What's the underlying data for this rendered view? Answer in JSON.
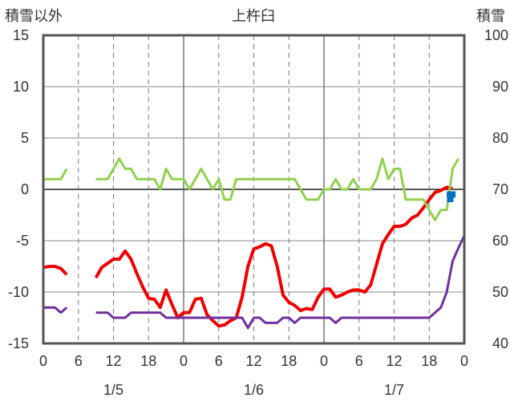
{
  "chart_data": {
    "type": "line",
    "title": "上杵臼",
    "y_left_label": "積雪以外",
    "y_right_label": "積雪",
    "y_left_range": [
      -15,
      15
    ],
    "y_left_ticks": [
      "15",
      "10",
      "5",
      "0",
      "-5",
      "-10",
      "-15"
    ],
    "y_right_range": [
      40,
      100
    ],
    "y_right_ticks": [
      "100",
      "90",
      "80",
      "70",
      "60",
      "50",
      "40"
    ],
    "x_range": [
      0,
      72
    ],
    "x_ticks": [
      "0",
      "6",
      "12",
      "18",
      "0",
      "6",
      "12",
      "18",
      "0",
      "6",
      "12",
      "18",
      "0"
    ],
    "date_labels": [
      {
        "label": "1/5",
        "x": 12
      },
      {
        "label": "1/6",
        "x": 36
      },
      {
        "label": "1/7",
        "x": 60
      }
    ],
    "colors": {
      "red": "#ee0000",
      "green": "#92d050",
      "purple": "#7030a0",
      "blue": "#0070c0"
    },
    "series": [
      {
        "color": "#ee0000",
        "width": 4,
        "segments": [
          [
            [
              0,
              -7.6
            ],
            [
              1,
              -7.5
            ],
            [
              2,
              -7.5
            ],
            [
              3,
              -7.7
            ],
            [
              4,
              -8.3
            ]
          ],
          [
            [
              9,
              -8.6
            ],
            [
              10,
              -7.6
            ],
            [
              11,
              -7.2
            ],
            [
              12,
              -6.8
            ],
            [
              13,
              -6.8
            ],
            [
              14,
              -6
            ],
            [
              15,
              -6.8
            ],
            [
              16,
              -8.2
            ],
            [
              17,
              -9.5
            ],
            [
              18,
              -10.6
            ],
            [
              19,
              -10.7
            ],
            [
              20,
              -11.5
            ],
            [
              21,
              -9.8
            ],
            [
              22,
              -11.2
            ],
            [
              23,
              -12.5
            ],
            [
              24,
              -12
            ],
            [
              25,
              -12
            ],
            [
              26,
              -10.7
            ],
            [
              27,
              -10.6
            ],
            [
              28,
              -12.2
            ],
            [
              29,
              -12.8
            ],
            [
              30,
              -13.3
            ],
            [
              31,
              -13.2
            ],
            [
              32,
              -12.8
            ],
            [
              33,
              -12.5
            ],
            [
              34,
              -10.5
            ],
            [
              35,
              -7.5
            ],
            [
              36,
              -5.8
            ],
            [
              37,
              -5.6
            ],
            [
              38,
              -5.3
            ],
            [
              39,
              -5.5
            ],
            [
              40,
              -7.5
            ],
            [
              41,
              -10.3
            ],
            [
              42,
              -11
            ],
            [
              43,
              -11.3
            ],
            [
              44,
              -11.8
            ],
            [
              45,
              -11.6
            ],
            [
              46,
              -11.7
            ],
            [
              47,
              -10.5
            ],
            [
              48,
              -9.7
            ],
            [
              49,
              -9.7
            ],
            [
              50,
              -10.5
            ],
            [
              51,
              -10.3
            ],
            [
              52,
              -10
            ],
            [
              53,
              -9.8
            ],
            [
              54,
              -9.8
            ],
            [
              55,
              -10
            ],
            [
              56,
              -9.3
            ],
            [
              57,
              -7.3
            ],
            [
              58,
              -5.3
            ],
            [
              59,
              -4.4
            ],
            [
              60,
              -3.6
            ],
            [
              61,
              -3.6
            ],
            [
              62,
              -3.4
            ],
            [
              63,
              -2.8
            ],
            [
              64,
              -2.5
            ],
            [
              65,
              -1.8
            ],
            [
              66,
              -1
            ],
            [
              67,
              -0.3
            ],
            [
              68,
              -0.1
            ],
            [
              69,
              0.2
            ],
            [
              70,
              0.1
            ]
          ]
        ]
      },
      {
        "color": "#92d050",
        "width": 3,
        "segments": [
          [
            [
              0,
              1
            ],
            [
              1,
              1
            ],
            [
              2,
              1
            ],
            [
              3,
              1
            ],
            [
              4,
              2
            ]
          ],
          [
            [
              9,
              1
            ],
            [
              10,
              1
            ],
            [
              11,
              1
            ],
            [
              12,
              2
            ],
            [
              13,
              3
            ],
            [
              14,
              2
            ],
            [
              15,
              2
            ],
            [
              16,
              1
            ],
            [
              17,
              1
            ],
            [
              18,
              1
            ],
            [
              19,
              1
            ],
            [
              20,
              0
            ],
            [
              21,
              2
            ],
            [
              22,
              1
            ],
            [
              23,
              1
            ],
            [
              24,
              1
            ],
            [
              25,
              0
            ],
            [
              26,
              1
            ],
            [
              27,
              2
            ],
            [
              28,
              1
            ],
            [
              29,
              0
            ],
            [
              30,
              1
            ],
            [
              31,
              -1
            ],
            [
              32,
              -1
            ],
            [
              33,
              1
            ],
            [
              34,
              1
            ],
            [
              35,
              1
            ],
            [
              36,
              1
            ],
            [
              37,
              1
            ],
            [
              38,
              1
            ],
            [
              39,
              1
            ],
            [
              40,
              1
            ],
            [
              41,
              1
            ],
            [
              42,
              1
            ],
            [
              43,
              1
            ],
            [
              44,
              0
            ],
            [
              45,
              -1
            ],
            [
              46,
              -1
            ],
            [
              47,
              -1
            ],
            [
              48,
              0
            ],
            [
              49,
              0
            ],
            [
              50,
              1
            ],
            [
              51,
              0
            ],
            [
              52,
              0
            ],
            [
              53,
              1
            ],
            [
              54,
              0
            ],
            [
              55,
              0
            ],
            [
              56,
              0
            ],
            [
              57,
              1
            ],
            [
              58,
              3
            ],
            [
              59,
              1
            ],
            [
              60,
              2
            ],
            [
              61,
              2
            ],
            [
              62,
              -1
            ],
            [
              63,
              -1
            ],
            [
              64,
              -1
            ],
            [
              65,
              -1
            ],
            [
              66,
              -2
            ],
            [
              67,
              -3
            ],
            [
              68,
              -2
            ],
            [
              69,
              -2
            ],
            [
              70,
              2
            ],
            [
              71,
              3
            ]
          ]
        ]
      },
      {
        "color": "#7030a0",
        "width": 3,
        "segments": [
          [
            [
              0,
              -11.5
            ],
            [
              1,
              -11.5
            ],
            [
              2,
              -11.5
            ],
            [
              3,
              -12
            ],
            [
              4,
              -11.5
            ]
          ],
          [
            [
              9,
              -12
            ],
            [
              10,
              -12
            ],
            [
              11,
              -12
            ],
            [
              12,
              -12.5
            ],
            [
              13,
              -12.5
            ],
            [
              14,
              -12.5
            ],
            [
              15,
              -12
            ],
            [
              16,
              -12
            ],
            [
              17,
              -12
            ],
            [
              18,
              -12
            ],
            [
              19,
              -12
            ],
            [
              20,
              -12
            ],
            [
              21,
              -12.5
            ],
            [
              22,
              -12.5
            ],
            [
              23,
              -12.5
            ],
            [
              24,
              -12.5
            ],
            [
              25,
              -12.5
            ],
            [
              26,
              -12.5
            ],
            [
              27,
              -12.5
            ],
            [
              28,
              -12.5
            ],
            [
              29,
              -12.5
            ],
            [
              30,
              -12.5
            ],
            [
              31,
              -12.5
            ],
            [
              32,
              -12.5
            ],
            [
              33,
              -12.5
            ],
            [
              34,
              -12.5
            ],
            [
              35,
              -13.5
            ],
            [
              36,
              -12.5
            ],
            [
              37,
              -12.5
            ],
            [
              38,
              -13
            ],
            [
              39,
              -13
            ],
            [
              40,
              -13
            ],
            [
              41,
              -12.5
            ],
            [
              42,
              -12.5
            ],
            [
              43,
              -13
            ],
            [
              44,
              -12.5
            ],
            [
              45,
              -12.5
            ],
            [
              46,
              -12.5
            ],
            [
              47,
              -12.5
            ],
            [
              48,
              -12.5
            ],
            [
              49,
              -12.5
            ],
            [
              50,
              -13
            ],
            [
              51,
              -12.5
            ],
            [
              52,
              -12.5
            ],
            [
              53,
              -12.5
            ],
            [
              54,
              -12.5
            ],
            [
              55,
              -12.5
            ],
            [
              56,
              -12.5
            ],
            [
              57,
              -12.5
            ],
            [
              58,
              -12.5
            ],
            [
              59,
              -12.5
            ],
            [
              60,
              -12.5
            ],
            [
              61,
              -12.5
            ],
            [
              62,
              -12.5
            ],
            [
              63,
              -12.5
            ],
            [
              64,
              -12.5
            ],
            [
              65,
              -12.5
            ],
            [
              66,
              -12.5
            ],
            [
              67,
              -12
            ],
            [
              68,
              -11.5
            ],
            [
              69,
              -10
            ],
            [
              70,
              -7
            ],
            [
              71,
              -5.7
            ],
            [
              72,
              -4.5
            ]
          ]
        ]
      },
      {
        "color": "#0070c0",
        "width": 8,
        "axis": "right",
        "segments": [
          [
            [
              69,
              69
            ],
            [
              70,
              69
            ],
            [
              70.5,
              69
            ]
          ],
          [
            [
              69.6,
              69
            ],
            [
              69.6,
              67.5
            ]
          ]
        ]
      }
    ]
  }
}
